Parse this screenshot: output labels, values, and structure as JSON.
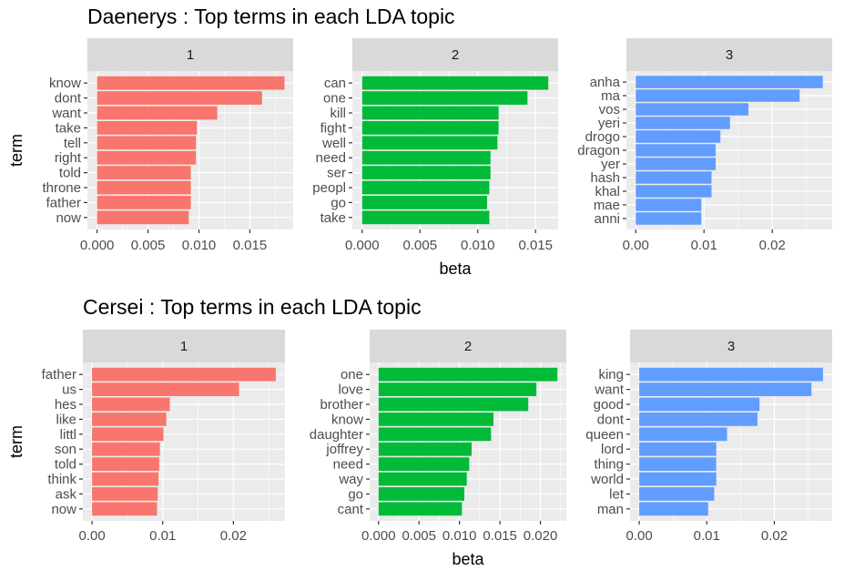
{
  "chart_data": [
    {
      "type": "bar",
      "orientation": "horizontal",
      "title": "Daenerys : Top terms in each LDA topic",
      "xlabel": "beta",
      "ylabel": "term",
      "grid": true,
      "legend": "none",
      "facets": [
        {
          "label": "1",
          "color": "#F8766D",
          "xlim": [
            -0.00095,
            0.01925
          ],
          "xticks": [
            0.0,
            0.005,
            0.01,
            0.015
          ],
          "xtick_labels": [
            "0.000",
            "0.005",
            "0.010",
            "0.015"
          ],
          "categories": [
            "know",
            "dont",
            "want",
            "take",
            "tell",
            "right",
            "told",
            "throne",
            "father",
            "now"
          ],
          "values": [
            0.0184,
            0.0162,
            0.0118,
            0.0098,
            0.0097,
            0.0097,
            0.0092,
            0.0092,
            0.0092,
            0.009
          ]
        },
        {
          "label": "2",
          "color": "#00BA38",
          "xlim": [
            -0.00085,
            0.01695
          ],
          "xticks": [
            0.0,
            0.005,
            0.01,
            0.015
          ],
          "xtick_labels": [
            "0.000",
            "0.005",
            "0.010",
            "0.015"
          ],
          "categories": [
            "can",
            "one",
            "kill",
            "fight",
            "well",
            "need",
            "ser",
            "peopl",
            "go",
            "take"
          ],
          "values": [
            0.0161,
            0.0143,
            0.0118,
            0.0118,
            0.0117,
            0.0111,
            0.0111,
            0.011,
            0.0108,
            0.011
          ]
        },
        {
          "label": "3",
          "color": "#619CFF",
          "xlim": [
            -0.00137,
            0.02877
          ],
          "xticks": [
            0.0,
            0.01,
            0.02
          ],
          "xtick_labels": [
            "0.00",
            "0.01",
            "0.02"
          ],
          "categories": [
            "anha",
            "ma",
            "vos",
            "yeri",
            "drogo",
            "dragon",
            "yer",
            "hash",
            "khal",
            "mae",
            "anni"
          ],
          "values": [
            0.0274,
            0.024,
            0.0165,
            0.0138,
            0.0124,
            0.0117,
            0.0117,
            0.0111,
            0.0111,
            0.0096,
            0.0096
          ]
        }
      ]
    },
    {
      "type": "bar",
      "orientation": "horizontal",
      "title": "Cersei : Top terms in each LDA topic",
      "xlabel": "beta",
      "ylabel": "term",
      "grid": true,
      "legend": "none",
      "facets": [
        {
          "label": "1",
          "color": "#F8766D",
          "xlim": [
            -0.0013,
            0.0273
          ],
          "xticks": [
            0.0,
            0.01,
            0.02
          ],
          "xtick_labels": [
            "0.00",
            "0.01",
            "0.02"
          ],
          "categories": [
            "father",
            "us",
            "hes",
            "like",
            "littl",
            "son",
            "told",
            "think",
            "ask",
            "now"
          ],
          "values": [
            0.026,
            0.0208,
            0.011,
            0.0105,
            0.0101,
            0.0096,
            0.0095,
            0.0094,
            0.0093,
            0.0092
          ]
        },
        {
          "label": "2",
          "color": "#00BA38",
          "xlim": [
            -0.0011,
            0.0232
          ],
          "xticks": [
            0.0,
            0.005,
            0.01,
            0.015,
            0.02
          ],
          "xtick_labels": [
            "0.000",
            "0.005",
            "0.010",
            "0.015",
            "0.020"
          ],
          "categories": [
            "one",
            "love",
            "brother",
            "know",
            "daughter",
            "joffrey",
            "need",
            "way",
            "go",
            "cant"
          ],
          "values": [
            0.0221,
            0.0195,
            0.0185,
            0.0142,
            0.0139,
            0.0115,
            0.0112,
            0.0109,
            0.0106,
            0.0103
          ]
        },
        {
          "label": "3",
          "color": "#619CFF",
          "xlim": [
            -0.00136,
            0.02856
          ],
          "xticks": [
            0.0,
            0.01,
            0.02
          ],
          "xtick_labels": [
            "0.00",
            "0.01",
            "0.02"
          ],
          "categories": [
            "king",
            "want",
            "good",
            "dont",
            "queen",
            "lord",
            "thing",
            "world",
            "let",
            "man"
          ],
          "values": [
            0.0272,
            0.0255,
            0.0178,
            0.0175,
            0.013,
            0.0114,
            0.0114,
            0.0114,
            0.0111,
            0.0102
          ]
        }
      ]
    }
  ]
}
